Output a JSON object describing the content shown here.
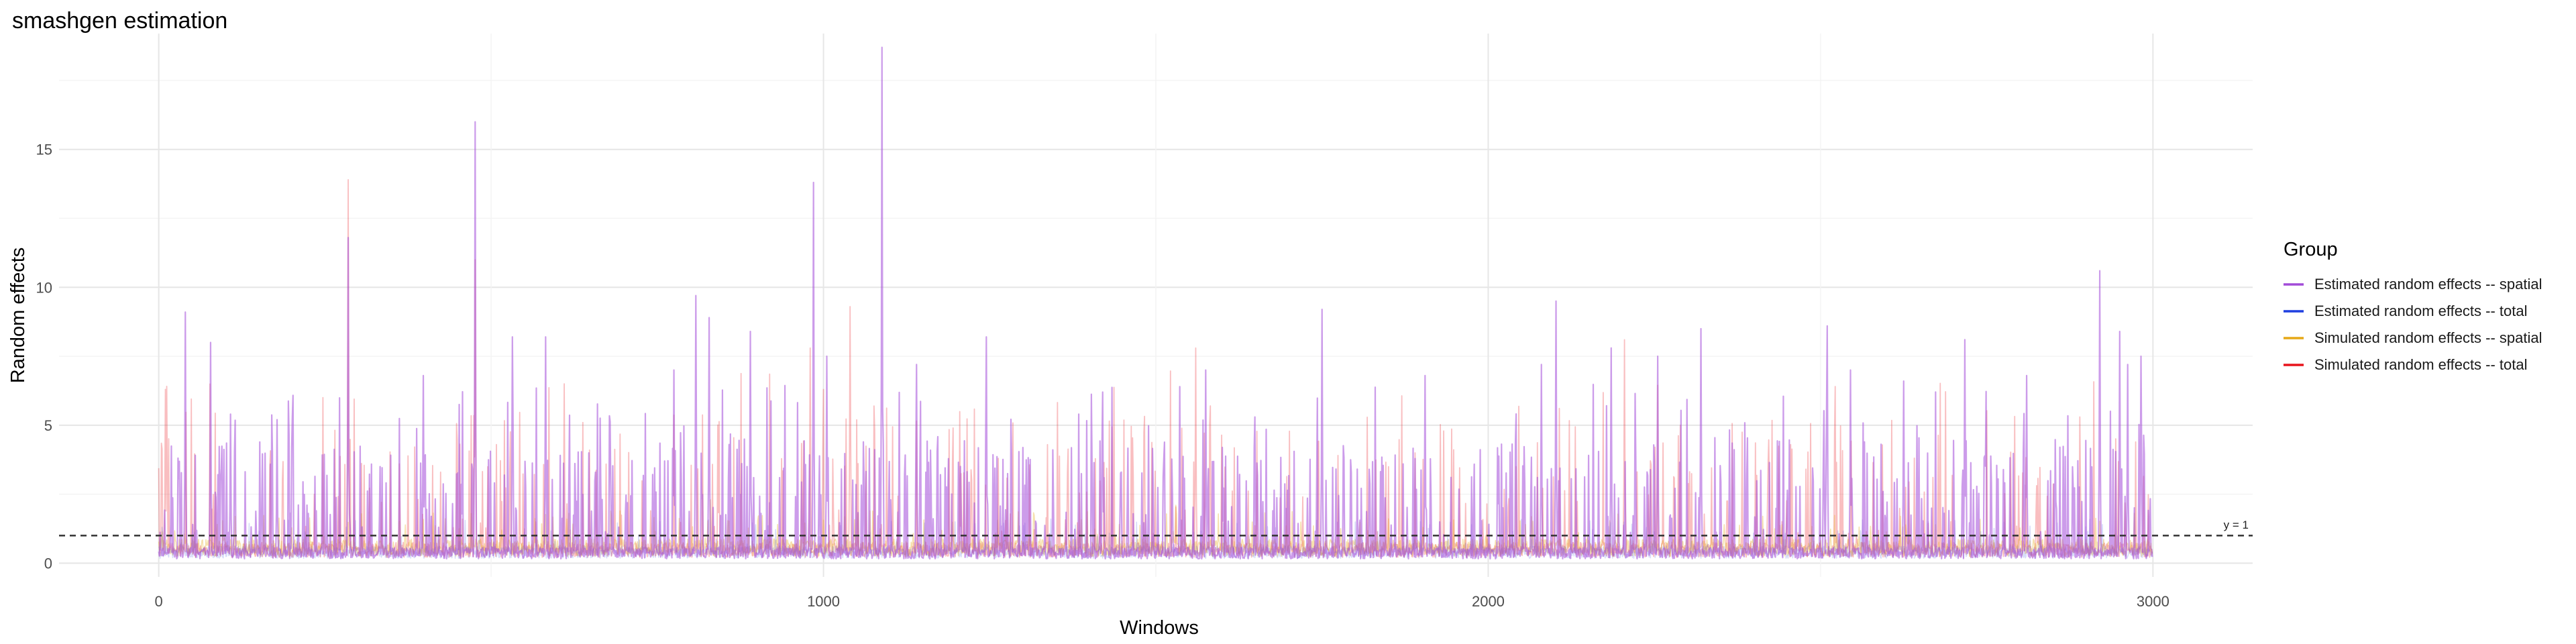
{
  "chart_data": {
    "type": "line",
    "title": "smashgen estimation",
    "xlabel": "Windows",
    "ylabel": "Random effects",
    "xlim": [
      -150,
      3150
    ],
    "ylim": [
      -0.5,
      19.2
    ],
    "x_ticks": [
      0,
      1000,
      2000,
      3000
    ],
    "x_tick_labels": [
      "0",
      "1000",
      "2000",
      "3000"
    ],
    "y_ticks": [
      0,
      5,
      10,
      15
    ],
    "y_tick_labels": [
      "0",
      "5",
      "10",
      "15"
    ],
    "grid": true,
    "legend": {
      "title": "Group",
      "placement": "right",
      "entries": [
        {
          "label": "Estimated random effects -- spatial",
          "color": "#a24bd8"
        },
        {
          "label": "Estimated random effects -- total",
          "color": "#1f3fe0"
        },
        {
          "label": "Simulated random effects -- spatial",
          "color": "#e6a817"
        },
        {
          "label": "Simulated random effects -- total",
          "color": "#e8141c"
        }
      ]
    },
    "reference_line": {
      "y": 1,
      "label": "y = 1",
      "style": "dashed"
    },
    "series": [
      {
        "name": "Estimated random effects -- spatial",
        "color": "#a24bd8",
        "n_points": 3000,
        "baseline": 0.45,
        "spikes": [
          {
            "x": 40,
            "y": 9.1
          },
          {
            "x": 78,
            "y": 8.0
          },
          {
            "x": 108,
            "y": 5.4
          },
          {
            "x": 178,
            "y": 5.2
          },
          {
            "x": 285,
            "y": 11.8
          },
          {
            "x": 398,
            "y": 6.8
          },
          {
            "x": 476,
            "y": 16.0
          },
          {
            "x": 532,
            "y": 8.2
          },
          {
            "x": 582,
            "y": 8.2
          },
          {
            "x": 775,
            "y": 7.0
          },
          {
            "x": 808,
            "y": 9.7
          },
          {
            "x": 828,
            "y": 8.9
          },
          {
            "x": 890,
            "y": 8.4
          },
          {
            "x": 985,
            "y": 13.8
          },
          {
            "x": 1005,
            "y": 7.5
          },
          {
            "x": 1088,
            "y": 18.7
          },
          {
            "x": 1140,
            "y": 7.2
          },
          {
            "x": 1245,
            "y": 8.2
          },
          {
            "x": 1420,
            "y": 6.2
          },
          {
            "x": 1575,
            "y": 7.0
          },
          {
            "x": 1750,
            "y": 9.2
          },
          {
            "x": 1905,
            "y": 6.8
          },
          {
            "x": 2080,
            "y": 7.2
          },
          {
            "x": 2102,
            "y": 9.5
          },
          {
            "x": 2185,
            "y": 7.8
          },
          {
            "x": 2255,
            "y": 7.5
          },
          {
            "x": 2320,
            "y": 8.5
          },
          {
            "x": 2510,
            "y": 8.6
          },
          {
            "x": 2545,
            "y": 7.0
          },
          {
            "x": 2625,
            "y": 6.6
          },
          {
            "x": 2717,
            "y": 8.1
          },
          {
            "x": 2810,
            "y": 6.8
          },
          {
            "x": 2920,
            "y": 10.6
          },
          {
            "x": 2950,
            "y": 8.4
          },
          {
            "x": 2962,
            "y": 7.2
          },
          {
            "x": 2982,
            "y": 7.5
          }
        ]
      },
      {
        "name": "Estimated random effects -- total",
        "color": "#1f3fe0",
        "n_points": 3000,
        "baseline": 0.5,
        "spikes": []
      },
      {
        "name": "Simulated random effects -- spatial",
        "color": "#e6a817",
        "n_points": 3000,
        "baseline": 0.7,
        "spikes": [
          {
            "x": 470,
            "y": 1.8
          },
          {
            "x": 830,
            "y": 2.3
          },
          {
            "x": 1070,
            "y": 1.9
          },
          {
            "x": 1530,
            "y": 2.1
          },
          {
            "x": 2620,
            "y": 1.7
          }
        ]
      },
      {
        "name": "Simulated random effects -- total",
        "color": "#e8141c",
        "n_points": 3000,
        "baseline": 0.6,
        "spikes": [
          {
            "x": 10,
            "y": 6.3
          },
          {
            "x": 285,
            "y": 13.9
          },
          {
            "x": 476,
            "y": 11.0
          },
          {
            "x": 610,
            "y": 6.5
          },
          {
            "x": 980,
            "y": 7.8
          },
          {
            "x": 1040,
            "y": 9.3
          },
          {
            "x": 1560,
            "y": 7.8
          },
          {
            "x": 2205,
            "y": 8.1
          },
          {
            "x": 2890,
            "y": 5.3
          }
        ]
      }
    ]
  }
}
